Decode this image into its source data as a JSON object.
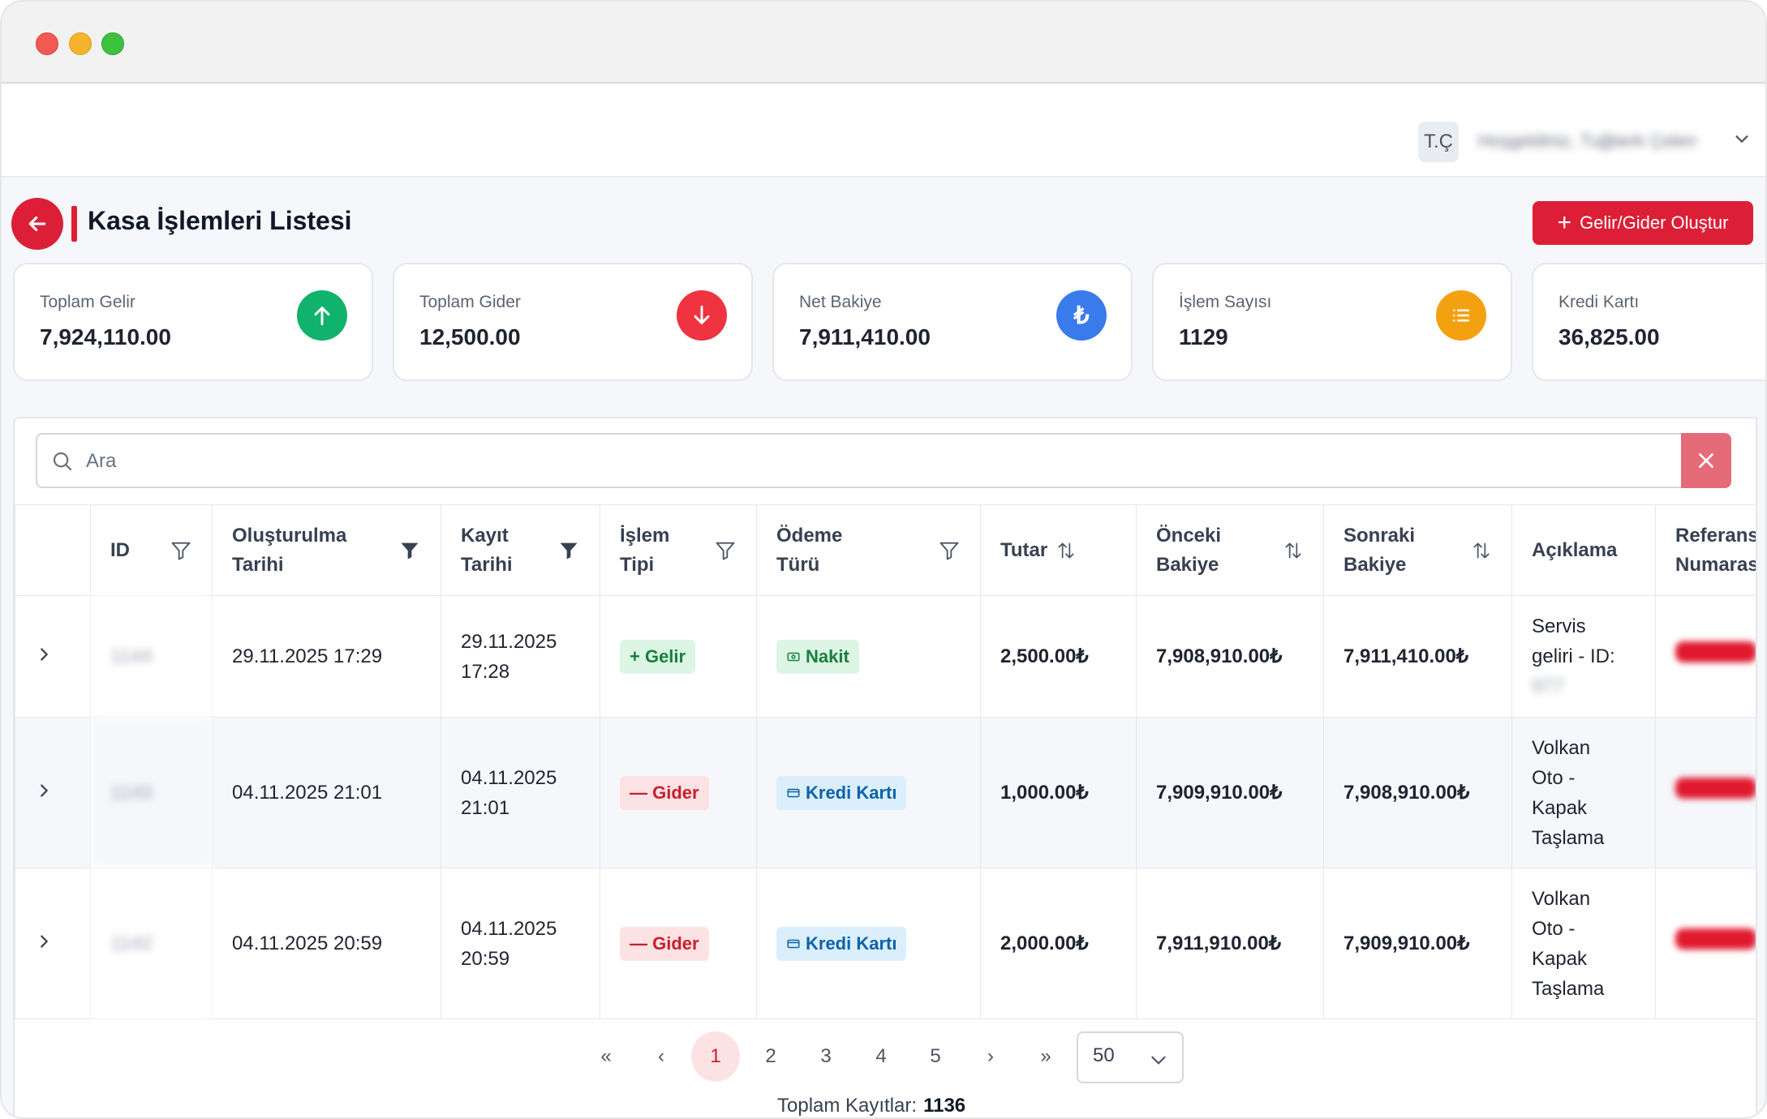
{
  "header": {
    "avatar_initials": "T.Ç",
    "welcome_text": "Hoşgeldiniz, Tuğberk Çelen"
  },
  "page": {
    "title": "Kasa İşlemleri Listesi",
    "create_button_label": "Gelir/Gider Oluştur"
  },
  "stats": [
    {
      "label": "Toplam Gelir",
      "value": "7,924,110.00",
      "icon": "arrow-up-icon",
      "color": "#10b26c"
    },
    {
      "label": "Toplam Gider",
      "value": "12,500.00",
      "icon": "arrow-down-icon",
      "color": "#ef3340"
    },
    {
      "label": "Net Bakiye",
      "value": "7,911,410.00",
      "icon": "lira-icon",
      "color": "#3a7bec"
    },
    {
      "label": "İşlem Sayısı",
      "value": "1129",
      "icon": "list-icon",
      "color": "#f4a111"
    },
    {
      "label": "Kredi Kartı",
      "value": "36,825.00",
      "icon": "credit-card-icon",
      "color": "#8b5cf6"
    }
  ],
  "search": {
    "placeholder": "Ara"
  },
  "table": {
    "columns": {
      "id": "ID",
      "created_1": "Oluşturulma",
      "created_2": "Tarihi",
      "record_1": "Kayıt",
      "record_2": "Tarihi",
      "type_1": "İşlem",
      "type_2": "Tipi",
      "payment_1": "Ödeme",
      "payment_2": "Türü",
      "amount": "Tutar",
      "prev_1": "Önceki",
      "prev_2": "Bakiye",
      "next_1": "Sonraki",
      "next_2": "Bakiye",
      "desc": "Açıklama",
      "ref_1": "Referans",
      "ref_2": "Numarası"
    },
    "rows": [
      {
        "id": "1144",
        "created": "29.11.2025 17:29",
        "record_date": "29.11.2025",
        "record_time": "17:28",
        "type": "+ Gelir",
        "payment": "Nakit",
        "amount": "2,500.00₺",
        "prev_balance": "7,908,910.00₺",
        "next_balance": "7,911,410.00₺",
        "desc_1": "Servis",
        "desc_2": "geliri - ID:",
        "desc_3": "977"
      },
      {
        "id": "1143",
        "created": "04.11.2025 21:01",
        "record_date": "04.11.2025",
        "record_time": "21:01",
        "type": "— Gider",
        "payment": "Kredi Kartı",
        "amount": "1,000.00₺",
        "prev_balance": "7,909,910.00₺",
        "next_balance": "7,908,910.00₺",
        "desc_1": "Volkan",
        "desc_2": "Oto -",
        "desc_3": "Kapak",
        "desc_4": "Taşlama"
      },
      {
        "id": "1142",
        "created": "04.11.2025 20:59",
        "record_date": "04.11.2025",
        "record_time": "20:59",
        "type": "— Gider",
        "payment": "Kredi Kartı",
        "amount": "2,000.00₺",
        "prev_balance": "7,911,910.00₺",
        "next_balance": "7,909,910.00₺",
        "desc_1": "Volkan",
        "desc_2": "Oto -",
        "desc_3": "Kapak",
        "desc_4": "Taşlama"
      }
    ]
  },
  "pagination": {
    "first": "«",
    "prev": "‹",
    "pages": [
      "1",
      "2",
      "3",
      "4",
      "5"
    ],
    "current_page": "1",
    "next": "›",
    "last": "»",
    "page_size": "50",
    "total_label": "Toplam Kayıtlar:",
    "total_value": "1136"
  }
}
